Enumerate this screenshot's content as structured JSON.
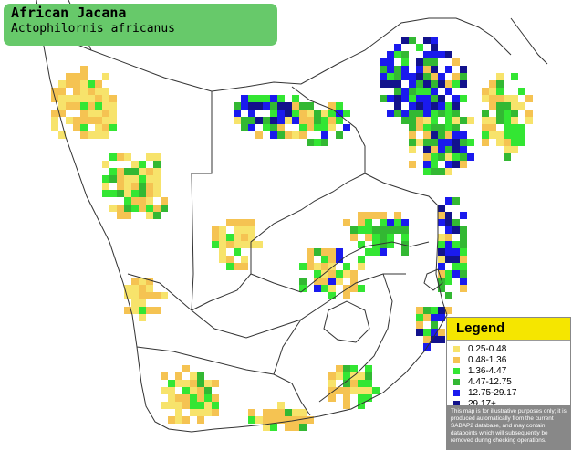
{
  "title": {
    "common_name": "African Jacana",
    "scientific_name": "Actophilornis africanus"
  },
  "legend": {
    "heading": "Legend",
    "items": [
      {
        "label": "0.25-0.48",
        "color": "#f7e36b"
      },
      {
        "label": "0.48-1.36",
        "color": "#f5c352"
      },
      {
        "label": "1.36-4.47",
        "color": "#33e633"
      },
      {
        "label": "4.47-12.75",
        "color": "#33b833"
      },
      {
        "label": "12.75-29.17",
        "color": "#1a1aee"
      },
      {
        "label": "29.17+",
        "color": "#12128c"
      }
    ],
    "disclaimer": "This map is for illustrative purposes only; it is produced automatically from the current SABAP2 database, and may contain datapoints which will subsequently be removed during checking operations."
  },
  "map": {
    "colors": {
      "border": "#333333",
      "grid": "#c8c8c8",
      "land": "#ffffff"
    }
  }
}
